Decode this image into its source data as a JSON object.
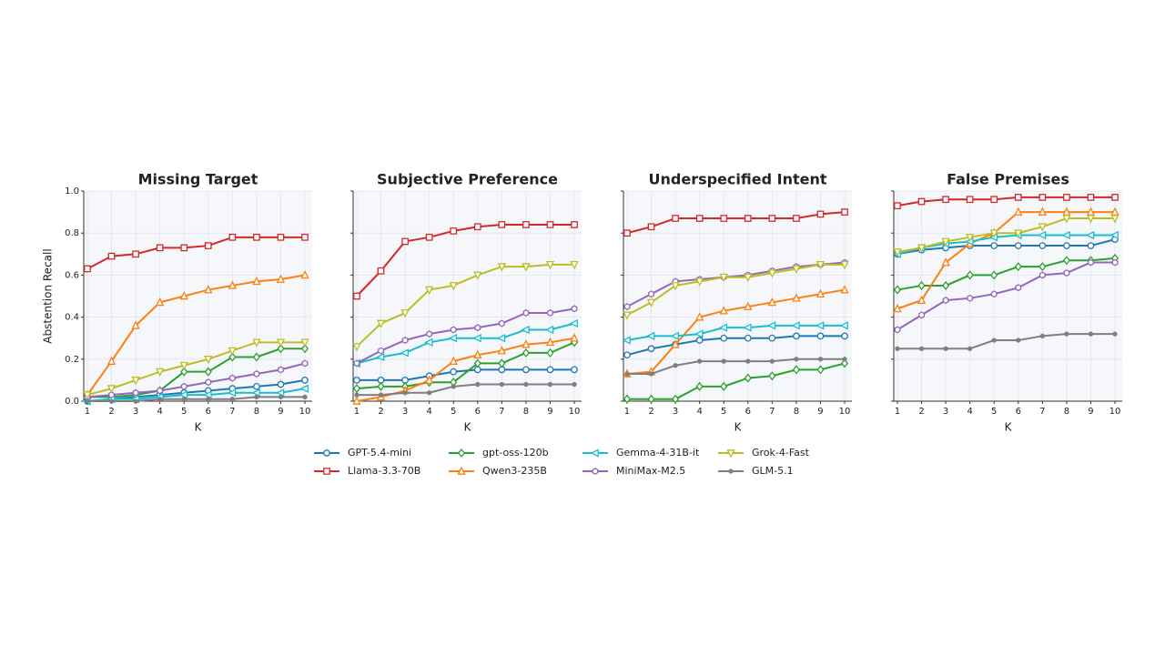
{
  "chart_data": [
    {
      "type": "line",
      "title": "Missing Target",
      "xlabel": "K",
      "ylabel": "Abstention Recall",
      "x": [
        1,
        2,
        3,
        4,
        5,
        6,
        7,
        8,
        9,
        10
      ],
      "xlim": [
        0.85,
        10.3
      ],
      "xticks": [
        1,
        2,
        3,
        4,
        5,
        6,
        7,
        8,
        9,
        10
      ],
      "ylim": [
        0,
        1
      ],
      "yticks": [
        {
          "value": 0,
          "label": "0.0"
        },
        0.2,
        0.4,
        0.6,
        0.8,
        {
          "value": 1,
          "label": "1.0"
        }
      ],
      "grid": true,
      "series": [
        {
          "name": "GPT-5.4-mini",
          "color": "#1f77b4",
          "marker": "o",
          "values": [
            0.0,
            0.01,
            0.02,
            0.03,
            0.04,
            0.05,
            0.06,
            0.07,
            0.08,
            0.1
          ]
        },
        {
          "name": "Llama-3.3-70B",
          "color": "#d62728",
          "marker": "s",
          "values": [
            0.63,
            0.69,
            0.7,
            0.73,
            0.73,
            0.74,
            0.78,
            0.78,
            0.78,
            0.78
          ]
        },
        {
          "name": "gpt-oss-120b",
          "color": "#2ca02c",
          "marker": "D",
          "values": [
            0.02,
            0.02,
            0.03,
            0.05,
            0.14,
            0.14,
            0.21,
            0.21,
            0.25,
            0.25
          ]
        },
        {
          "name": "Qwen3-235B",
          "color": "#ff7f0e",
          "marker": "^",
          "values": [
            0.03,
            0.19,
            0.36,
            0.47,
            0.5,
            0.53,
            0.55,
            0.57,
            0.58,
            0.6
          ]
        },
        {
          "name": "Gemma-4-31B-it",
          "color": "#17becf",
          "marker": "<",
          "values": [
            0.0,
            0.01,
            0.01,
            0.02,
            0.03,
            0.03,
            0.04,
            0.04,
            0.04,
            0.06
          ]
        },
        {
          "name": "MiniMax-M2.5",
          "color": "#9467bd",
          "marker": "h",
          "values": [
            0.02,
            0.03,
            0.04,
            0.05,
            0.07,
            0.09,
            0.11,
            0.13,
            0.15,
            0.18
          ]
        },
        {
          "name": "Grok-4-Fast",
          "color": "#bcbd22",
          "marker": "v",
          "values": [
            0.03,
            0.06,
            0.1,
            0.14,
            0.17,
            0.2,
            0.24,
            0.28,
            0.28,
            0.28
          ]
        },
        {
          "name": "GLM-5.1",
          "color": "#7f7f7f",
          "marker": ".",
          "values": [
            0.0,
            0.0,
            0.0,
            0.01,
            0.01,
            0.01,
            0.01,
            0.02,
            0.02,
            0.02
          ]
        }
      ]
    },
    {
      "type": "line",
      "title": "Subjective Preference",
      "xlabel": "K",
      "x": [
        1,
        2,
        3,
        4,
        5,
        6,
        7,
        8,
        9,
        10
      ],
      "xlim": [
        0.85,
        10.3
      ],
      "xticks": [
        1,
        2,
        3,
        4,
        5,
        6,
        7,
        8,
        9,
        10
      ],
      "ylim": [
        0,
        1
      ],
      "grid": true,
      "series": [
        {
          "name": "GPT-5.4-mini",
          "color": "#1f77b4",
          "marker": "o",
          "values": [
            0.1,
            0.1,
            0.1,
            0.12,
            0.14,
            0.15,
            0.15,
            0.15,
            0.15,
            0.15
          ]
        },
        {
          "name": "Llama-3.3-70B",
          "color": "#d62728",
          "marker": "s",
          "values": [
            0.5,
            0.62,
            0.76,
            0.78,
            0.81,
            0.83,
            0.84,
            0.84,
            0.84,
            0.84
          ]
        },
        {
          "name": "gpt-oss-120b",
          "color": "#2ca02c",
          "marker": "D",
          "values": [
            0.06,
            0.07,
            0.07,
            0.09,
            0.09,
            0.18,
            0.18,
            0.23,
            0.23,
            0.28
          ]
        },
        {
          "name": "Qwen3-235B",
          "color": "#ff7f0e",
          "marker": "^",
          "values": [
            0.0,
            0.02,
            0.05,
            0.1,
            0.19,
            0.22,
            0.24,
            0.27,
            0.28,
            0.3
          ]
        },
        {
          "name": "Gemma-4-31B-it",
          "color": "#17becf",
          "marker": "<",
          "values": [
            0.18,
            0.21,
            0.23,
            0.28,
            0.3,
            0.3,
            0.3,
            0.34,
            0.34,
            0.37
          ]
        },
        {
          "name": "MiniMax-M2.5",
          "color": "#9467bd",
          "marker": "h",
          "values": [
            0.18,
            0.24,
            0.29,
            0.32,
            0.34,
            0.35,
            0.37,
            0.42,
            0.42,
            0.44
          ]
        },
        {
          "name": "Grok-4-Fast",
          "color": "#bcbd22",
          "marker": "v",
          "values": [
            0.26,
            0.37,
            0.42,
            0.53,
            0.55,
            0.6,
            0.64,
            0.64,
            0.65,
            0.65
          ]
        },
        {
          "name": "GLM-5.1",
          "color": "#7f7f7f",
          "marker": ".",
          "values": [
            0.03,
            0.03,
            0.04,
            0.04,
            0.07,
            0.08,
            0.08,
            0.08,
            0.08,
            0.08
          ]
        }
      ]
    },
    {
      "type": "line",
      "title": "Underspecified Intent",
      "xlabel": "K",
      "x": [
        1,
        2,
        3,
        4,
        5,
        6,
        7,
        8,
        9,
        10
      ],
      "xlim": [
        0.85,
        10.3
      ],
      "xticks": [
        1,
        2,
        3,
        4,
        5,
        6,
        7,
        8,
        9,
        10
      ],
      "ylim": [
        0,
        1
      ],
      "grid": true,
      "series": [
        {
          "name": "GPT-5.4-mini",
          "color": "#1f77b4",
          "marker": "o",
          "values": [
            0.22,
            0.25,
            0.27,
            0.29,
            0.3,
            0.3,
            0.3,
            0.31,
            0.31,
            0.31
          ]
        },
        {
          "name": "Llama-3.3-70B",
          "color": "#d62728",
          "marker": "s",
          "values": [
            0.8,
            0.83,
            0.87,
            0.87,
            0.87,
            0.87,
            0.87,
            0.87,
            0.89,
            0.9
          ]
        },
        {
          "name": "gpt-oss-120b",
          "color": "#2ca02c",
          "marker": "D",
          "values": [
            0.01,
            0.01,
            0.01,
            0.07,
            0.07,
            0.11,
            0.12,
            0.15,
            0.15,
            0.18
          ]
        },
        {
          "name": "Qwen3-235B",
          "color": "#ff7f0e",
          "marker": "^",
          "values": [
            0.13,
            0.14,
            0.27,
            0.4,
            0.43,
            0.45,
            0.47,
            0.49,
            0.51,
            0.53
          ]
        },
        {
          "name": "Gemma-4-31B-it",
          "color": "#17becf",
          "marker": "<",
          "values": [
            0.29,
            0.31,
            0.31,
            0.32,
            0.35,
            0.35,
            0.36,
            0.36,
            0.36,
            0.36
          ]
        },
        {
          "name": "MiniMax-M2.5",
          "color": "#9467bd",
          "marker": "h",
          "values": [
            0.45,
            0.51,
            0.57,
            0.58,
            0.59,
            0.6,
            0.62,
            0.64,
            0.65,
            0.66
          ]
        },
        {
          "name": "Grok-4-Fast",
          "color": "#bcbd22",
          "marker": "v",
          "values": [
            0.41,
            0.47,
            0.55,
            0.57,
            0.59,
            0.59,
            0.61,
            0.63,
            0.65,
            0.65
          ]
        },
        {
          "name": "GLM-5.1",
          "color": "#7f7f7f",
          "marker": ".",
          "values": [
            0.13,
            0.13,
            0.17,
            0.19,
            0.19,
            0.19,
            0.19,
            0.2,
            0.2,
            0.2
          ]
        }
      ]
    },
    {
      "type": "line",
      "title": "False Premises",
      "xlabel": "K",
      "x": [
        1,
        2,
        3,
        4,
        5,
        6,
        7,
        8,
        9,
        10
      ],
      "xlim": [
        0.85,
        10.3
      ],
      "xticks": [
        1,
        2,
        3,
        4,
        5,
        6,
        7,
        8,
        9,
        10
      ],
      "ylim": [
        0,
        1
      ],
      "grid": true,
      "series": [
        {
          "name": "GPT-5.4-mini",
          "color": "#1f77b4",
          "marker": "o",
          "values": [
            0.7,
            0.72,
            0.73,
            0.74,
            0.74,
            0.74,
            0.74,
            0.74,
            0.74,
            0.77
          ]
        },
        {
          "name": "Llama-3.3-70B",
          "color": "#d62728",
          "marker": "s",
          "values": [
            0.93,
            0.95,
            0.96,
            0.96,
            0.96,
            0.97,
            0.97,
            0.97,
            0.97,
            0.97
          ]
        },
        {
          "name": "gpt-oss-120b",
          "color": "#2ca02c",
          "marker": "D",
          "values": [
            0.53,
            0.55,
            0.55,
            0.6,
            0.6,
            0.64,
            0.64,
            0.67,
            0.67,
            0.68
          ]
        },
        {
          "name": "Qwen3-235B",
          "color": "#ff7f0e",
          "marker": "^",
          "values": [
            0.44,
            0.48,
            0.66,
            0.75,
            0.8,
            0.9,
            0.9,
            0.9,
            0.9,
            0.9
          ]
        },
        {
          "name": "Gemma-4-31B-it",
          "color": "#17becf",
          "marker": "<",
          "values": [
            0.7,
            0.73,
            0.75,
            0.76,
            0.78,
            0.79,
            0.79,
            0.79,
            0.79,
            0.79
          ]
        },
        {
          "name": "MiniMax-M2.5",
          "color": "#9467bd",
          "marker": "h",
          "values": [
            0.34,
            0.41,
            0.48,
            0.49,
            0.51,
            0.54,
            0.6,
            0.61,
            0.66,
            0.66
          ]
        },
        {
          "name": "Grok-4-Fast",
          "color": "#bcbd22",
          "marker": "v",
          "values": [
            0.71,
            0.73,
            0.76,
            0.78,
            0.8,
            0.8,
            0.83,
            0.87,
            0.87,
            0.87
          ]
        },
        {
          "name": "GLM-5.1",
          "color": "#7f7f7f",
          "marker": ".",
          "values": [
            0.25,
            0.25,
            0.25,
            0.25,
            0.29,
            0.29,
            0.31,
            0.32,
            0.32,
            0.32
          ]
        }
      ]
    }
  ]
}
